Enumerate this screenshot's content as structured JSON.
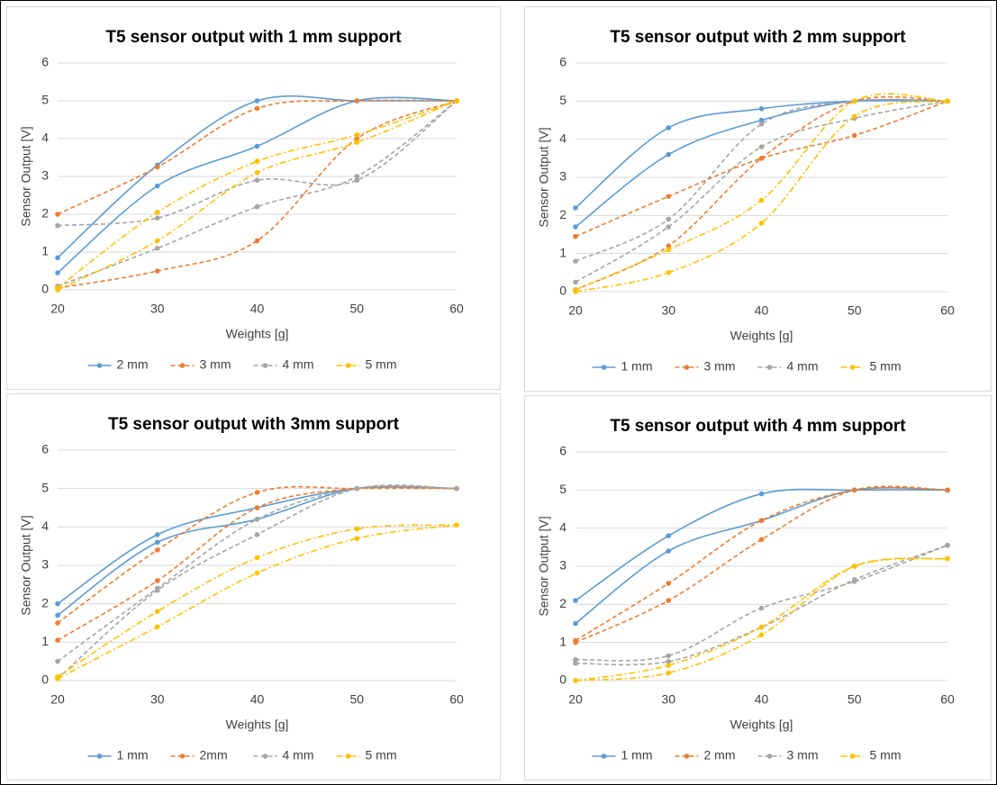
{
  "chart_data": [
    {
      "type": "line",
      "title": "T5 sensor output with 1 mm support",
      "xlabel": "Weights [g]",
      "ylabel": "Sensor Output [V]",
      "x": [
        20,
        30,
        40,
        50,
        60
      ],
      "xlim": [
        20,
        60
      ],
      "ylim": [
        0,
        6
      ],
      "xticks": [
        20,
        30,
        40,
        50,
        60
      ],
      "yticks": [
        0,
        1,
        2,
        3,
        4,
        5,
        6
      ],
      "grid": true,
      "smooth": true,
      "legend": "bottom",
      "series": [
        {
          "name": "2 mm",
          "color": "#5b9bd5",
          "dash": "solid",
          "runs": [
            [
              0.85,
              3.3,
              5.0,
              5.0,
              5.0
            ],
            [
              0.45,
              2.75,
              3.8,
              5.0,
              5.0
            ]
          ]
        },
        {
          "name": "3 mm",
          "color": "#ed7d31",
          "dash": "dash",
          "runs": [
            [
              2.0,
              3.25,
              4.8,
              5.0,
              5.0
            ],
            [
              0.05,
              0.5,
              1.3,
              4.0,
              5.0
            ]
          ]
        },
        {
          "name": "4 mm",
          "color": "#a5a5a5",
          "dash": "dash",
          "runs": [
            [
              1.7,
              1.9,
              2.9,
              2.9,
              5.0
            ],
            [
              0.1,
              1.1,
              2.2,
              3.0,
              5.0
            ]
          ]
        },
        {
          "name": "5 mm",
          "color": "#ffc000",
          "dash": "dashdot",
          "runs": [
            [
              0.05,
              2.05,
              3.4,
              4.1,
              5.0
            ],
            [
              0.0,
              1.3,
              3.1,
              3.9,
              5.0
            ]
          ]
        }
      ]
    },
    {
      "type": "line",
      "title": "T5 sensor output with 2 mm support",
      "xlabel": "Weights [g]",
      "ylabel": "Sensor Output [V]",
      "x": [
        20,
        30,
        40,
        50,
        60
      ],
      "xlim": [
        20,
        60
      ],
      "ylim": [
        0,
        6
      ],
      "xticks": [
        20,
        30,
        40,
        50,
        60
      ],
      "yticks": [
        0,
        1,
        2,
        3,
        4,
        5,
        6
      ],
      "grid": true,
      "smooth": true,
      "legend": "bottom",
      "series": [
        {
          "name": "1 mm",
          "color": "#5b9bd5",
          "dash": "solid",
          "runs": [
            [
              2.2,
              4.3,
              4.8,
              5.0,
              5.0
            ],
            [
              1.7,
              3.6,
              4.5,
              5.0,
              5.0
            ]
          ]
        },
        {
          "name": "3 mm",
          "color": "#ed7d31",
          "dash": "dash",
          "runs": [
            [
              1.45,
              2.5,
              3.5,
              4.1,
              5.0
            ],
            [
              0.05,
              1.2,
              3.5,
              5.0,
              5.0
            ]
          ]
        },
        {
          "name": "4 mm",
          "color": "#a5a5a5",
          "dash": "dash",
          "runs": [
            [
              0.8,
              1.9,
              4.4,
              5.0,
              5.0
            ],
            [
              0.25,
              1.7,
              3.8,
              4.55,
              5.0
            ]
          ]
        },
        {
          "name": "5 mm",
          "color": "#ffc000",
          "dash": "dashdot",
          "runs": [
            [
              0.05,
              1.1,
              2.4,
              5.0,
              5.0
            ],
            [
              0.0,
              0.5,
              1.8,
              4.6,
              5.0
            ]
          ]
        }
      ]
    },
    {
      "type": "line",
      "title": "T5 sensor output with 3mm support",
      "xlabel": "Weights [g]",
      "ylabel": "Sensor Output [V]",
      "x": [
        20,
        30,
        40,
        50,
        60
      ],
      "xlim": [
        20,
        60
      ],
      "ylim": [
        0,
        6
      ],
      "xticks": [
        20,
        30,
        40,
        50,
        60
      ],
      "yticks": [
        0,
        1,
        2,
        3,
        4,
        5,
        6
      ],
      "grid": true,
      "smooth": true,
      "legend": "bottom",
      "series": [
        {
          "name": "1 mm",
          "color": "#5b9bd5",
          "dash": "solid",
          "runs": [
            [
              2.0,
              3.8,
              4.5,
              5.0,
              5.0
            ],
            [
              1.7,
              3.6,
              4.2,
              5.0,
              5.0
            ]
          ]
        },
        {
          "name": "2mm",
          "color": "#ed7d31",
          "dash": "dash",
          "runs": [
            [
              1.5,
              3.4,
              4.9,
              5.0,
              5.0
            ],
            [
              1.05,
              2.6,
              4.5,
              5.0,
              5.0
            ]
          ]
        },
        {
          "name": "4 mm",
          "color": "#a5a5a5",
          "dash": "dash",
          "runs": [
            [
              0.5,
              2.4,
              4.2,
              5.0,
              5.0
            ],
            [
              0.05,
              2.35,
              3.8,
              5.0,
              5.0
            ]
          ]
        },
        {
          "name": "5 mm",
          "color": "#ffc000",
          "dash": "dashdot",
          "runs": [
            [
              0.1,
              1.8,
              3.2,
              3.95,
              4.05
            ],
            [
              0.05,
              1.4,
              2.8,
              3.7,
              4.05
            ]
          ]
        }
      ]
    },
    {
      "type": "line",
      "title": "T5 sensor output with 4 mm support",
      "xlabel": "Weights [g]",
      "ylabel": "Sensor Output [V]",
      "x": [
        20,
        30,
        40,
        50,
        60
      ],
      "xlim": [
        20,
        60
      ],
      "ylim": [
        0,
        6
      ],
      "xticks": [
        20,
        30,
        40,
        50,
        60
      ],
      "yticks": [
        0,
        1,
        2,
        3,
        4,
        5,
        6
      ],
      "grid": true,
      "smooth": true,
      "legend": "bottom",
      "series": [
        {
          "name": "1 mm",
          "color": "#5b9bd5",
          "dash": "solid",
          "runs": [
            [
              2.1,
              3.8,
              4.9,
              5.0,
              5.0
            ],
            [
              1.5,
              3.4,
              4.2,
              5.0,
              5.0
            ]
          ]
        },
        {
          "name": "2 mm",
          "color": "#ed7d31",
          "dash": "dash",
          "runs": [
            [
              1.05,
              2.55,
              4.2,
              5.0,
              5.0
            ],
            [
              1.0,
              2.1,
              3.7,
              5.0,
              5.0
            ]
          ]
        },
        {
          "name": "3 mm",
          "color": "#a5a5a5",
          "dash": "dash",
          "runs": [
            [
              0.55,
              0.65,
              1.9,
              2.6,
              3.55
            ],
            [
              0.45,
              0.5,
              1.4,
              2.65,
              3.55
            ]
          ]
        },
        {
          "name": "5 mm",
          "color": "#ffc000",
          "dash": "dashdot",
          "runs": [
            [
              0.0,
              0.4,
              1.4,
              3.0,
              3.2
            ],
            [
              0.0,
              0.2,
              1.2,
              3.0,
              3.2
            ]
          ]
        }
      ]
    }
  ]
}
